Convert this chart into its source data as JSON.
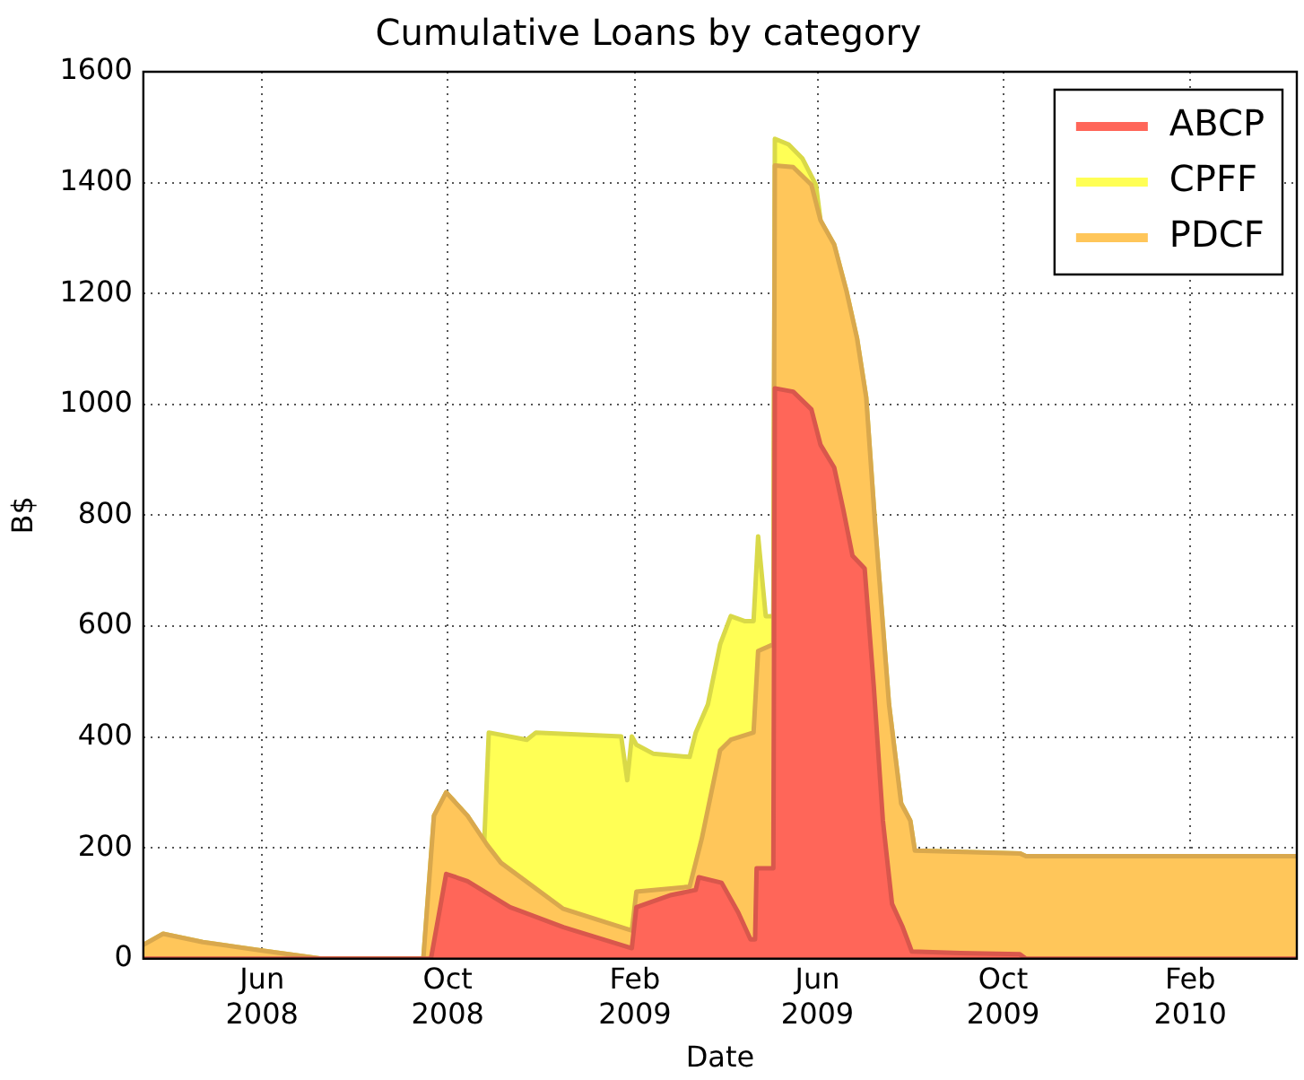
{
  "chart_data": {
    "type": "area",
    "title": "Cumulative Loans by category",
    "xlabel": "Date",
    "ylabel": "B$",
    "xlim": [
      "2008-03-15",
      "2010-04-12"
    ],
    "xticks": [
      {
        "value": "2008-06-01",
        "label": "Jun 2008"
      },
      {
        "value": "2008-10-01",
        "label": "Oct 2008"
      },
      {
        "value": "2009-02-01",
        "label": "Feb 2009"
      },
      {
        "value": "2009-06-01",
        "label": "Jun 2009"
      },
      {
        "value": "2009-10-01",
        "label": "Oct 2009"
      },
      {
        "value": "2010-02-01",
        "label": "Feb 2010"
      }
    ],
    "ylim": [
      0,
      1600
    ],
    "yticks": [
      0,
      200,
      400,
      600,
      800,
      1000,
      1200,
      1400,
      1600
    ],
    "grid": true,
    "legend": "top right",
    "series": [
      {
        "name": "ABCP",
        "color": "#ff6659",
        "x": [
          "2008-03-15",
          "2008-09-20",
          "2008-09-30",
          "2008-10-14",
          "2008-11-11",
          "2008-12-16",
          "2009-01-30",
          "2009-02-02",
          "2009-02-25",
          "2009-03-13",
          "2009-03-15",
          "2009-03-30",
          "2009-04-10",
          "2009-04-18",
          "2009-04-21",
          "2009-04-22",
          "2009-05-03",
          "2009-05-04",
          "2009-05-16",
          "2009-05-28",
          "2009-06-03",
          "2009-06-12",
          "2009-06-18",
          "2009-06-24",
          "2009-07-02",
          "2009-07-08",
          "2009-07-14",
          "2009-07-20",
          "2009-07-27",
          "2009-08-02",
          "2009-09-03",
          "2009-10-12",
          "2009-10-16",
          "2010-04-12"
        ],
        "values": [
          0,
          0,
          153,
          140,
          93,
          57,
          19,
          93,
          115,
          124,
          147,
          137,
          83,
          35,
          35,
          163,
          163,
          1029,
          1023,
          991,
          927,
          886,
          810,
          727,
          704,
          491,
          249,
          99,
          57,
          13,
          10,
          8,
          0,
          0
        ]
      },
      {
        "name": "CPFF",
        "color": "#ffff55",
        "x": [
          "2008-03-15",
          "2008-03-28",
          "2008-04-23",
          "2008-05-31",
          "2008-06-27",
          "2008-07-10",
          "2008-09-15",
          "2008-09-22",
          "2008-09-30",
          "2008-10-14",
          "2008-10-25",
          "2008-10-28",
          "2008-11-22",
          "2008-11-28",
          "2009-01-23",
          "2009-01-27",
          "2009-01-30",
          "2009-02-02",
          "2009-02-13",
          "2009-03-09",
          "2009-03-13",
          "2009-03-21",
          "2009-03-29",
          "2009-04-05",
          "2009-04-14",
          "2009-04-20",
          "2009-04-23",
          "2009-04-28",
          "2009-05-03",
          "2009-05-04",
          "2009-05-13",
          "2009-05-22",
          "2009-05-31",
          "2009-06-03",
          "2009-06-12",
          "2009-06-20",
          "2009-06-27",
          "2009-07-03",
          "2009-07-09",
          "2009-07-18",
          "2009-07-26",
          "2009-08-01",
          "2009-08-04",
          "2009-10-12",
          "2009-10-16",
          "2010-04-12"
        ],
        "values": [
          25,
          45,
          30,
          15,
          5,
          0,
          0,
          258,
          300,
          258,
          210,
          408,
          395,
          408,
          401,
          322,
          401,
          386,
          370,
          364,
          408,
          459,
          567,
          618,
          609,
          609,
          762,
          618,
          618,
          1479,
          1469,
          1444,
          1396,
          1332,
          1288,
          1205,
          1119,
          1013,
          778,
          459,
          280,
          249,
          195,
          190,
          185,
          185
        ]
      },
      {
        "name": "PDCF",
        "color": "#ffc65a",
        "x": [
          "2008-03-15",
          "2008-03-28",
          "2008-04-23",
          "2008-05-31",
          "2008-06-27",
          "2008-07-10",
          "2008-09-15",
          "2008-09-22",
          "2008-09-30",
          "2008-10-14",
          "2008-10-27",
          "2008-11-05",
          "2008-12-16",
          "2009-01-30",
          "2009-02-02",
          "2009-03-09",
          "2009-03-17",
          "2009-03-29",
          "2009-04-05",
          "2009-04-20",
          "2009-04-23",
          "2009-05-03",
          "2009-05-04",
          "2009-05-16",
          "2009-05-28",
          "2009-06-03",
          "2009-06-12",
          "2009-06-20",
          "2009-06-27",
          "2009-07-03",
          "2009-07-09",
          "2009-07-18",
          "2009-07-26",
          "2009-08-01",
          "2009-08-04",
          "2009-10-12",
          "2009-10-16",
          "2010-04-12"
        ],
        "values": [
          25,
          45,
          30,
          15,
          5,
          0,
          0,
          258,
          300,
          258,
          205,
          173,
          90,
          51,
          121,
          130,
          217,
          376,
          395,
          408,
          555,
          567,
          1431,
          1428,
          1396,
          1332,
          1288,
          1205,
          1119,
          1013,
          778,
          459,
          280,
          249,
          195,
          190,
          185,
          185
        ]
      }
    ]
  }
}
